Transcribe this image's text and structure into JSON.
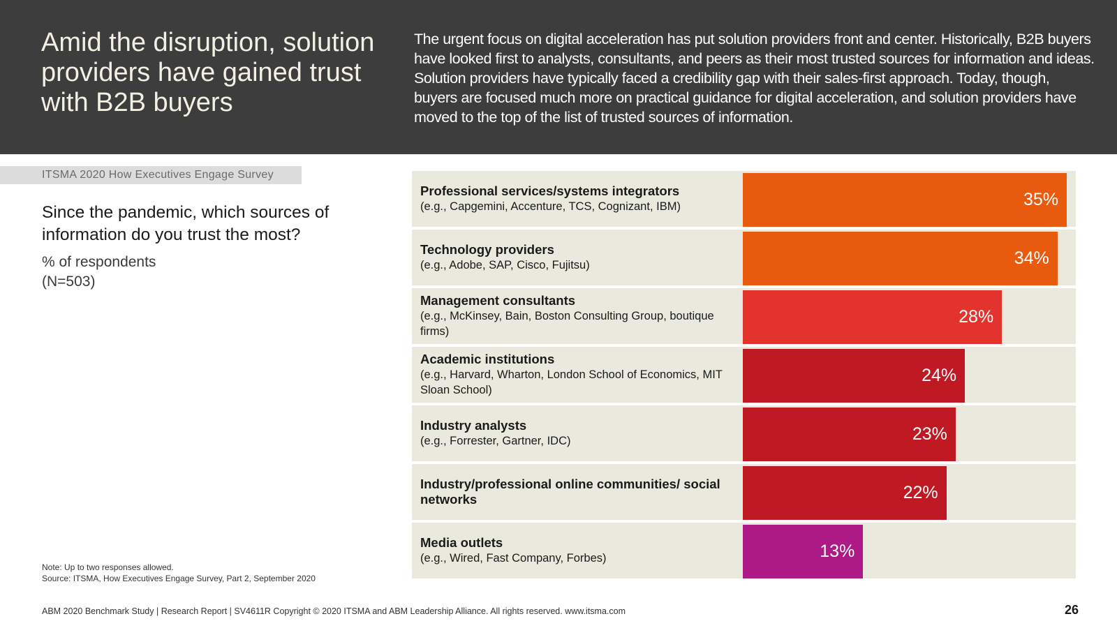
{
  "header": {
    "title": "Amid the disruption, solution providers have gained trust with B2B buyers",
    "description": "The urgent focus on digital acceleration has put solution providers front and center. Historically, B2B buyers have looked first to analysts, consultants, and peers as their most trusted sources for information and ideas. Solution providers have typically faced a credibility gap with their sales-first approach. Today, though, buyers are focused much more on practical guidance for digital acceleration, and solution providers have moved to the top of the list of trusted sources of information."
  },
  "survey_tag": "ITSMA 2020 How Executives Engage Survey",
  "question": "Since the pandemic, which sources of information do you trust the most?",
  "unit_line1": "% of respondents",
  "unit_line2": "(N=503)",
  "notes": {
    "note": "Note: Up to two responses allowed.",
    "source": "Source: ITSMA, How Executives Engage Survey, Part 2, September 2020"
  },
  "footer": "ABM 2020 Benchmark Study | Research Report | SV4611R Copyright © 2020 ITSMA and ABM Leadership Alliance. All rights reserved. www.itsma.com",
  "page_number": "26",
  "chart_data": {
    "type": "bar",
    "orientation": "horizontal",
    "title": "Since the pandemic, which sources of information do you trust the most?",
    "xlabel": "% of respondents",
    "xlim": [
      0,
      35
    ],
    "categories": [
      {
        "name": "Professional services/systems integrators",
        "example": "(e.g., Capgemini, Accenture, TCS, Cognizant, IBM)",
        "value": 35,
        "label": "35%",
        "color": "#e85a0e"
      },
      {
        "name": "Technology providers",
        "example": "(e.g., Adobe, SAP, Cisco, Fujitsu)",
        "value": 34,
        "label": "34%",
        "color": "#e85a0e"
      },
      {
        "name": "Management consultants",
        "example": "(e.g., McKinsey, Bain, Boston Consulting Group, boutique firms)",
        "value": 28,
        "label": "28%",
        "color": "#e2342d"
      },
      {
        "name": "Academic institutions",
        "example": "(e.g., Harvard, Wharton, London School of Economics, MIT Sloan School)",
        "value": 24,
        "label": "24%",
        "color": "#bf1923"
      },
      {
        "name": "Industry analysts",
        "example": "(e.g., Forrester, Gartner, IDC)",
        "value": 23,
        "label": "23%",
        "color": "#bf1923"
      },
      {
        "name": "Industry/professional online communities/ social networks",
        "example": "",
        "value": 22,
        "label": "22%",
        "color": "#bf1923"
      },
      {
        "name": "Media outlets",
        "example": "(e.g., Wired, Fast Company, Forbes)",
        "value": 13,
        "label": "13%",
        "color": "#ad1a86"
      }
    ]
  }
}
